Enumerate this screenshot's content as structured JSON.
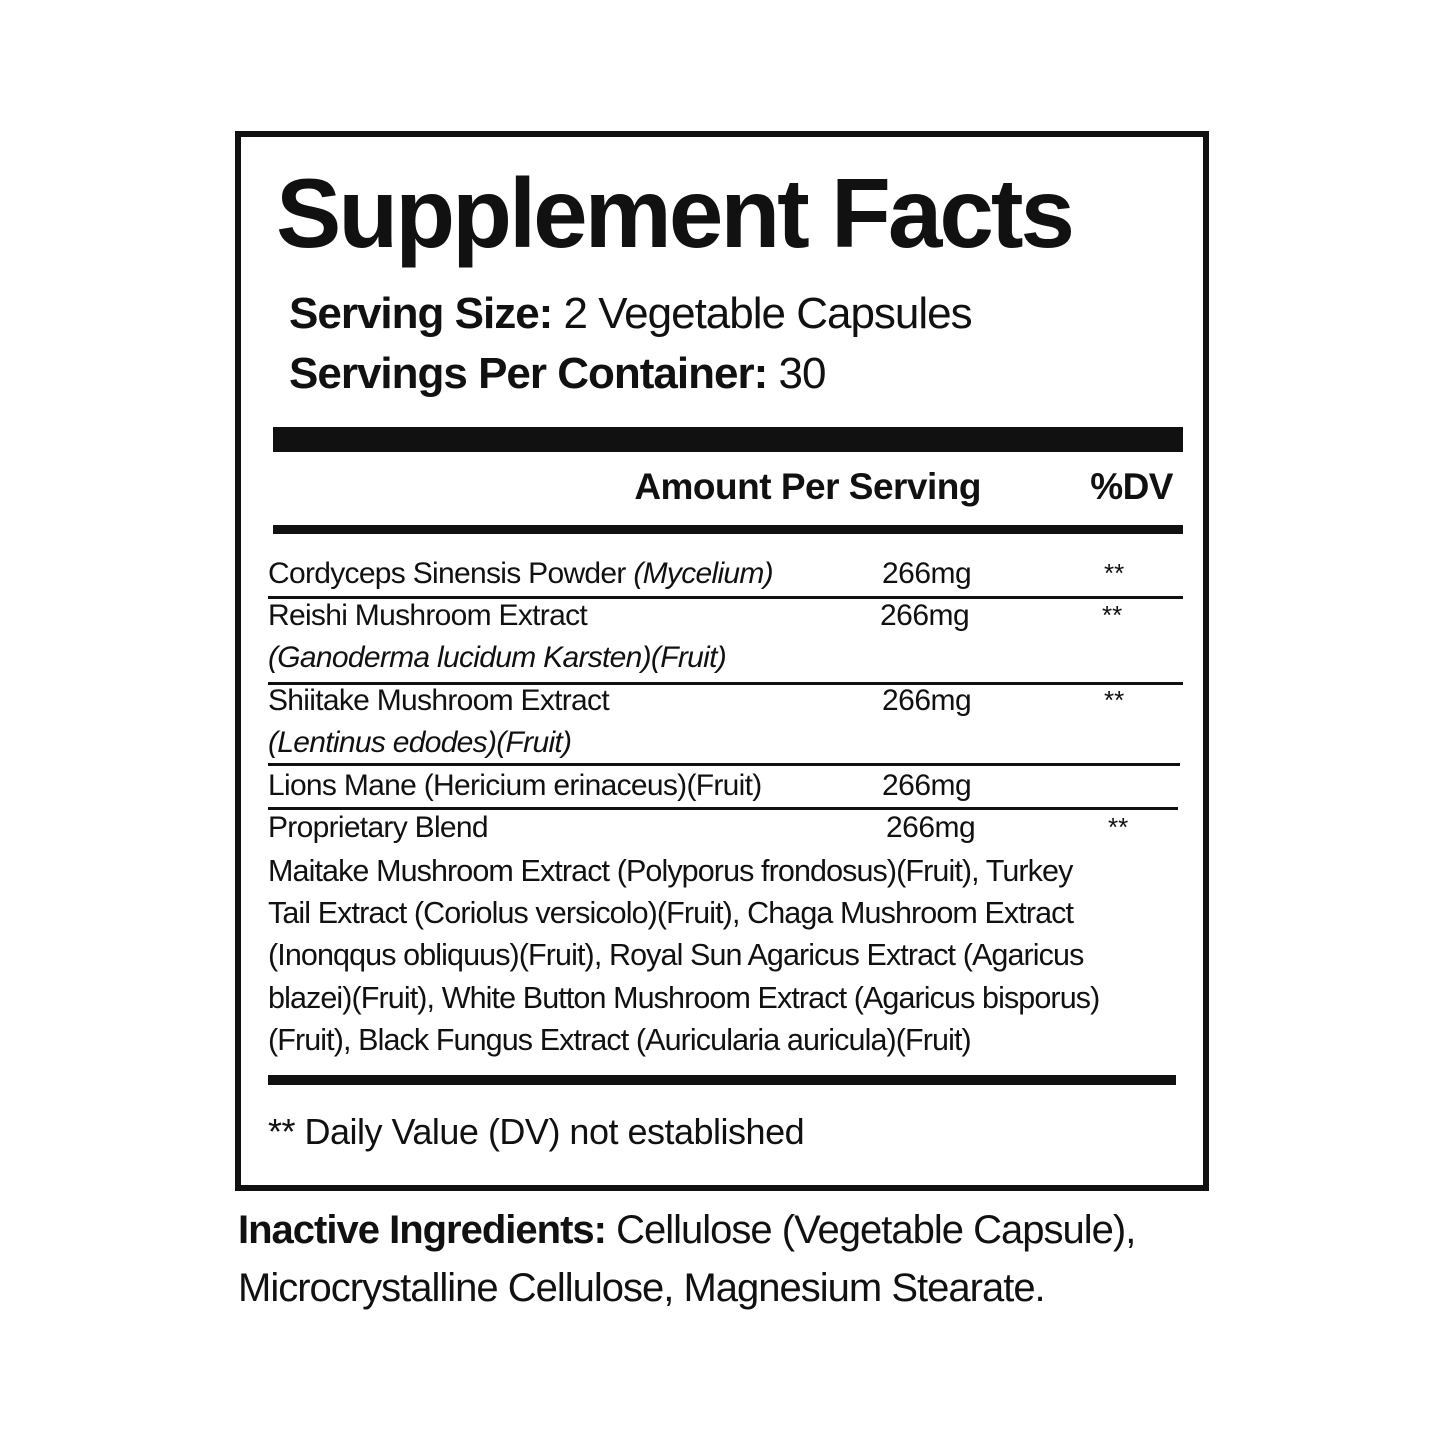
{
  "title": "Supplement Facts",
  "serving_size": {
    "label": "Serving Size:",
    "value": "2 Vegetable Capsules"
  },
  "servings_per_container": {
    "label": "Servings Per Container:",
    "value": "30"
  },
  "header": {
    "amount": "Amount Per Serving",
    "dv": "%DV"
  },
  "rows": [
    {
      "name": "Cordyceps Sinensis Powder ",
      "name_italic": "(Mycelium)",
      "amount": "266mg",
      "dv": "**"
    },
    {
      "name": "Reishi Mushroom Extract",
      "sub_italic": "(Ganoderma lucidum Karsten)(Fruit)",
      "amount": "266mg",
      "dv": "**"
    },
    {
      "name": "Shiitake Mushroom Extract",
      "sub_italic": "(Lentinus edodes)(Fruit)",
      "amount": "266mg",
      "dv": "**"
    },
    {
      "name": "Lions Mane (Hericium erinaceus)(Fruit)",
      "amount": "266mg"
    },
    {
      "name": "Proprietary Blend",
      "amount": "266mg",
      "dv": "**"
    }
  ],
  "blend_lines": [
    "Maitake Mushroom Extract (Polyporus frondosus)(Fruit), Turkey",
    "Tail Extract (Coriolus versicolo)(Fruit), Chaga Mushroom Extract",
    "(Inonqqus obliquus)(Fruit), Royal Sun Agaricus Extract (Agaricus",
    "blazei)(Fruit), White Button Mushroom Extract (Agaricus bisporus)",
    "(Fruit), Black Fungus Extract (Auricularia auricula)(Fruit)"
  ],
  "footnote": "** Daily Value (DV) not established",
  "inactive": {
    "label": "Inactive Ingredients:",
    "line1": "Cellulose (Vegetable Capsule),",
    "line2": "Microcrystalline Cellulose, Magnesium Stearate."
  }
}
